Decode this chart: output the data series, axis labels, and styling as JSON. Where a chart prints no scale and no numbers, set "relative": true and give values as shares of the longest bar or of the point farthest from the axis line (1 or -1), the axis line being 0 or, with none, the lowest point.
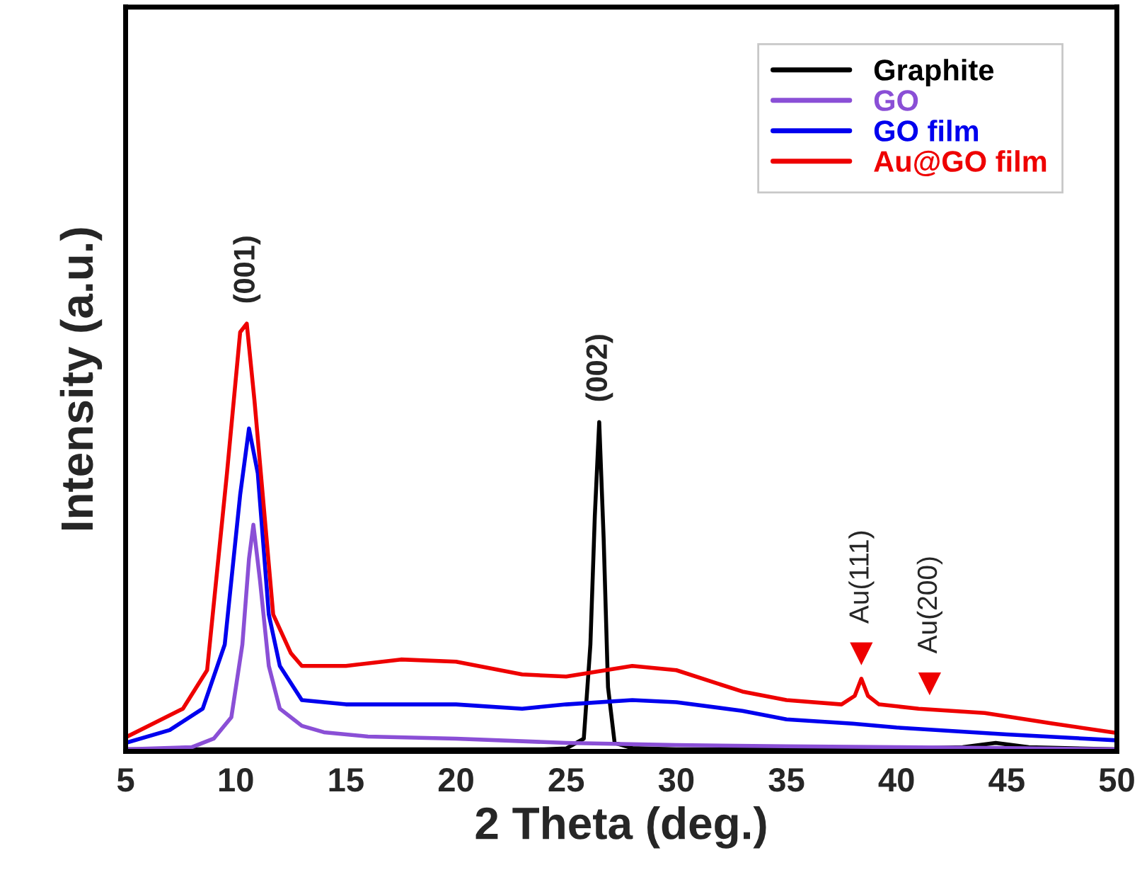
{
  "chart_data": {
    "type": "line",
    "relative": true,
    "xlabel": "2 Theta (deg.)",
    "ylabel": "Intensity (a.u.)",
    "xlim": [
      5,
      50
    ],
    "xticks": [
      5,
      10,
      15,
      20,
      25,
      30,
      35,
      40,
      45,
      50
    ],
    "legend": "top right",
    "tick_labels": "x",
    "series": [
      {
        "name": "Graphite",
        "color": "#000000",
        "x": [
          5,
          10,
          15,
          20,
          24,
          25,
          25.8,
          26.1,
          26.3,
          26.5,
          26.7,
          26.9,
          27.2,
          28,
          30,
          35,
          40,
          43,
          44.5,
          46,
          50
        ],
        "values": [
          0.005,
          0.005,
          0.005,
          0.005,
          0.005,
          0.007,
          0.03,
          0.25,
          0.55,
          0.77,
          0.5,
          0.15,
          0.02,
          0.008,
          0.005,
          0.005,
          0.006,
          0.01,
          0.02,
          0.01,
          0.005
        ]
      },
      {
        "name": "GO",
        "color": "#8a4fd6",
        "x": [
          5,
          8,
          9,
          9.8,
          10.3,
          10.6,
          10.8,
          11.1,
          11.5,
          12,
          13,
          14,
          16,
          20,
          25,
          30,
          35,
          40,
          45,
          50
        ],
        "values": [
          0.005,
          0.01,
          0.03,
          0.08,
          0.25,
          0.45,
          0.53,
          0.4,
          0.2,
          0.1,
          0.06,
          0.045,
          0.035,
          0.03,
          0.02,
          0.015,
          0.012,
          0.01,
          0.008,
          0.005
        ]
      },
      {
        "name": "GO film",
        "color": "#0000ee",
        "x": [
          5,
          7,
          8.5,
          9.5,
          10.2,
          10.6,
          11,
          11.5,
          12,
          13,
          15,
          20,
          23,
          25,
          28,
          30,
          33,
          35,
          38,
          40,
          45,
          50
        ],
        "values": [
          0.02,
          0.05,
          0.1,
          0.25,
          0.6,
          0.755,
          0.65,
          0.32,
          0.2,
          0.12,
          0.11,
          0.11,
          0.1,
          0.11,
          0.12,
          0.115,
          0.095,
          0.075,
          0.065,
          0.056,
          0.04,
          0.026
        ]
      },
      {
        "name": "Au@GO film",
        "color": "#ee0000",
        "x": [
          5,
          7.6,
          8.7,
          9.6,
          10.2,
          10.5,
          10.85,
          11.7,
          12.5,
          13,
          15,
          17.5,
          20,
          23,
          25,
          28,
          30,
          33,
          35,
          37.5,
          38.1,
          38.4,
          38.7,
          39.2,
          41,
          44,
          47,
          50
        ],
        "values": [
          0.033,
          0.1,
          0.19,
          0.65,
          0.98,
          1.0,
          0.82,
          0.32,
          0.23,
          0.2,
          0.2,
          0.215,
          0.21,
          0.18,
          0.175,
          0.2,
          0.19,
          0.14,
          0.12,
          0.11,
          0.13,
          0.17,
          0.13,
          0.11,
          0.1,
          0.09,
          0.066,
          0.043
        ]
      }
    ],
    "annotations": [
      {
        "text": "(001)",
        "x": 10.5,
        "y": 1.0
      },
      {
        "text": "(002)",
        "x": 26.5,
        "y": 0.77
      },
      {
        "text": "Au(111)",
        "x": 38.4,
        "y": 0.17
      },
      {
        "text": "Au(200)",
        "x": 41.5,
        "y": 0.1
      }
    ]
  }
}
